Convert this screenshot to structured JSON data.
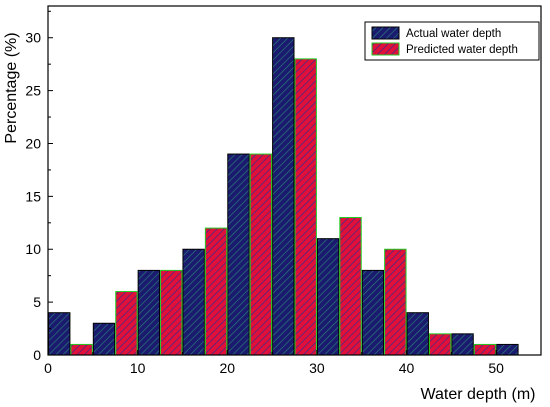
{
  "chart_data": {
    "type": "bar",
    "title": "",
    "xlabel": "Water depth (m)",
    "ylabel": "Percentage (%)",
    "xlim": [
      0,
      55
    ],
    "ylim": [
      0,
      33
    ],
    "xticks": [
      0,
      10,
      20,
      30,
      40,
      50
    ],
    "yticks": [
      0,
      5,
      10,
      15,
      20,
      25,
      30
    ],
    "bin_width": 5,
    "bin_centers": [
      2.5,
      7.5,
      12.5,
      17.5,
      22.5,
      27.5,
      32.5,
      37.5,
      42.5,
      47.5,
      52.5
    ],
    "grid": false,
    "legend_position": "top-right",
    "series": [
      {
        "name": "Actual water depth",
        "fill": "#1a1a6e",
        "hatch": "#2a7a7a",
        "edge": "#000000",
        "values": [
          4,
          3,
          8,
          10,
          19,
          30,
          11,
          8,
          4,
          2,
          1
        ]
      },
      {
        "name": "Predicted water depth",
        "fill": "#e0103a",
        "hatch": "#3a2a8a",
        "edge": "#22cc22",
        "values": [
          1,
          6,
          8,
          12,
          19,
          28,
          13,
          10,
          2,
          1,
          0
        ]
      }
    ]
  }
}
